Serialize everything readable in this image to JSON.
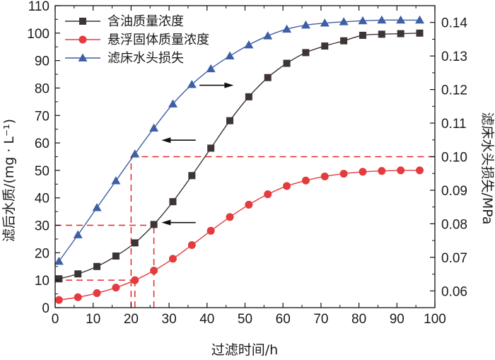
{
  "chart_data": {
    "type": "line",
    "xlabel": "过滤时间/h",
    "ylabel": "滤后水质/(mg · L⁻¹)",
    "y2label": "滤床水头损失/MPa",
    "xlim": [
      0,
      100
    ],
    "ylim": [
      0,
      110
    ],
    "y2lim": [
      0.055,
      0.145
    ],
    "x_ticks": [
      0,
      10,
      20,
      30,
      40,
      50,
      60,
      70,
      80,
      90,
      100
    ],
    "y_ticks": [
      0,
      10,
      20,
      30,
      40,
      50,
      60,
      70,
      80,
      90,
      100,
      110
    ],
    "y2_ticks": [
      0.06,
      0.07,
      0.08,
      0.09,
      0.1,
      0.11,
      0.12,
      0.13,
      0.14
    ],
    "legend_position": "top-left",
    "series": [
      {
        "name": "含油质量浓度",
        "axis": "left",
        "color": "#3d3533",
        "marker": "square",
        "x": [
          1,
          6,
          11,
          16,
          21,
          26,
          31,
          36,
          41,
          46,
          51,
          56,
          61,
          66,
          71,
          76,
          81,
          86,
          91,
          96
        ],
        "values": [
          10.5,
          12.3,
          15,
          18.8,
          23.6,
          30.3,
          38.6,
          48.1,
          58.1,
          68.1,
          76.8,
          83.8,
          89,
          92.9,
          95.3,
          97.2,
          99.2,
          99.6,
          99.8,
          100
        ]
      },
      {
        "name": "悬浮固体质量浓度",
        "axis": "left",
        "color": "#e33b3e",
        "marker": "circle",
        "x": [
          1,
          6,
          11,
          16,
          21,
          26,
          31,
          36,
          41,
          46,
          51,
          56,
          61,
          66,
          71,
          76,
          81,
          86,
          91,
          96
        ],
        "values": [
          2.8,
          3.8,
          5.3,
          7.3,
          10,
          13.5,
          17.8,
          22.8,
          28,
          33,
          37.5,
          41.3,
          44.3,
          46.3,
          47.8,
          48.8,
          49.5,
          49.8,
          50,
          50
        ]
      },
      {
        "name": "滤床水头损失",
        "axis": "right",
        "color": "#3e5fa4",
        "marker": "triangle",
        "x": [
          1,
          6,
          11,
          16,
          21,
          26,
          31,
          36,
          41,
          46,
          51,
          56,
          61,
          66,
          71,
          76,
          81,
          86,
          91,
          96
        ],
        "values": [
          0.0688,
          0.0767,
          0.0848,
          0.0928,
          0.1008,
          0.1085,
          0.1157,
          0.1215,
          0.1262,
          0.13,
          0.1333,
          0.136,
          0.138,
          0.1392,
          0.1398,
          0.1402,
          0.1405,
          0.1407,
          0.1407,
          0.1407
        ]
      }
    ],
    "reference_lines": [
      {
        "axis": "left",
        "y": 10,
        "x_end": 21
      },
      {
        "axis": "left",
        "y": 30,
        "x_end": 26
      },
      {
        "axis": "right",
        "y": 0.1,
        "x_start": 20,
        "x_end": 100
      },
      {
        "x": 20,
        "y_from": 0,
        "axis": "right",
        "y_to": 0.1
      },
      {
        "x": 21,
        "y_from": 0,
        "axis": "left",
        "y_to": 10
      },
      {
        "x": 26,
        "y_from": 0,
        "axis": "left",
        "y_to": 30
      }
    ],
    "arrows": [
      {
        "direction": "right",
        "x_from": 38,
        "x_to": 47,
        "y": 81
      },
      {
        "direction": "left",
        "x_from": 37,
        "x_to": 28,
        "y": 61
      },
      {
        "direction": "left",
        "x_from": 37,
        "x_to": 28,
        "y": 31
      }
    ]
  }
}
